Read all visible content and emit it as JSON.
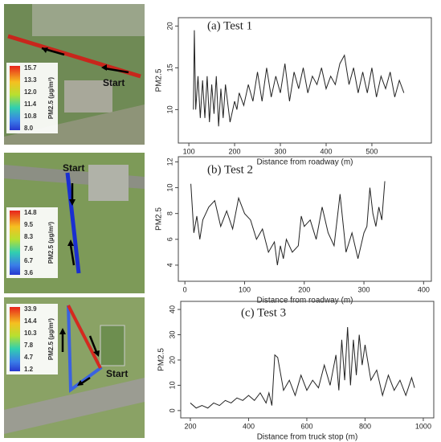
{
  "chart_data": [
    {
      "type": "line",
      "title": "(a) Test 1",
      "y_label": "PM2.5",
      "x_label": "Distance from roadway (m)",
      "color": "#222222",
      "x": [
        110,
        112,
        115,
        120,
        125,
        130,
        135,
        140,
        145,
        150,
        155,
        160,
        165,
        170,
        175,
        180,
        190,
        200,
        205,
        210,
        220,
        230,
        240,
        250,
        260,
        270,
        280,
        290,
        300,
        310,
        320,
        330,
        340,
        350,
        360,
        370,
        380,
        390,
        400,
        410,
        420,
        430,
        440,
        450,
        460,
        470,
        480,
        490,
        500,
        510,
        520,
        530,
        540,
        550,
        560,
        570
      ],
      "values": [
        10,
        19.5,
        10,
        14,
        9,
        13.5,
        9,
        14,
        8.5,
        13,
        9.5,
        14,
        8,
        12.5,
        9,
        13,
        8.5,
        11,
        10,
        12,
        10.5,
        13,
        11,
        14.5,
        11,
        15,
        11.5,
        14,
        12,
        15.5,
        11,
        14.5,
        12.5,
        15,
        12,
        14,
        13,
        15,
        12.5,
        14,
        13,
        15.5,
        16.5,
        13,
        15,
        12,
        14.5,
        12,
        15,
        11.5,
        14,
        12.5,
        14.5,
        11.5,
        13.5,
        12
      ],
      "xlim": [
        77,
        630
      ],
      "ylim": [
        6,
        21
      ],
      "xticks": [
        100,
        200,
        300,
        400,
        500
      ],
      "yticks": [
        10,
        15,
        20
      ]
    },
    {
      "type": "line",
      "title": "(b) Test 2",
      "y_label": "PM2.5",
      "x_label": "Distance from roadway (m)",
      "color": "#222222",
      "x": [
        10,
        15,
        20,
        25,
        30,
        35,
        40,
        50,
        60,
        70,
        80,
        90,
        100,
        110,
        120,
        130,
        140,
        150,
        155,
        160,
        165,
        170,
        180,
        190,
        195,
        200,
        210,
        220,
        230,
        240,
        250,
        260,
        270,
        280,
        290,
        300,
        305,
        310,
        315,
        320,
        325,
        330,
        335
      ],
      "values": [
        10.3,
        6.5,
        7.8,
        6,
        7.5,
        8,
        8.5,
        9,
        7,
        8.2,
        6.8,
        9.2,
        8,
        7.5,
        6,
        6.8,
        5,
        5.8,
        4,
        5.5,
        4.5,
        6,
        5,
        5.5,
        7.8,
        7,
        7.5,
        6,
        8.5,
        6.5,
        5.5,
        9.5,
        5,
        6.5,
        4.5,
        6.5,
        7,
        10,
        8,
        7,
        8.5,
        7.5,
        10.5
      ],
      "xlim": [
        -11,
        413
      ],
      "ylim": [
        2.75,
        12.4
      ],
      "xticks": [
        0,
        100,
        200,
        300,
        400
      ],
      "yticks": [
        4,
        6,
        8,
        10,
        12
      ]
    },
    {
      "type": "line",
      "title": "(c) Test 3",
      "y_label": "PM2.5",
      "x_label": "Distance from truck stop (m)",
      "color": "#222222",
      "x": [
        200,
        220,
        240,
        260,
        280,
        300,
        320,
        340,
        360,
        380,
        400,
        420,
        440,
        460,
        470,
        480,
        490,
        500,
        520,
        540,
        560,
        580,
        600,
        620,
        640,
        660,
        680,
        700,
        710,
        720,
        730,
        740,
        750,
        760,
        770,
        780,
        790,
        800,
        820,
        840,
        860,
        880,
        900,
        920,
        940,
        960,
        970
      ],
      "values": [
        3,
        1,
        2,
        1,
        3,
        2,
        4,
        3,
        5,
        4,
        6,
        4,
        7,
        3,
        7,
        2,
        22,
        21,
        8,
        12,
        6,
        14,
        8,
        12,
        9,
        18,
        10,
        22,
        8,
        28,
        12,
        33,
        10,
        28,
        14,
        30,
        18,
        26,
        12,
        16,
        6,
        14,
        8,
        12,
        6,
        13,
        9
      ],
      "xlim": [
        167,
        1036
      ],
      "ylim": [
        -2.9,
        43.2
      ],
      "xticks": [
        200,
        400,
        600,
        800,
        1000
      ],
      "yticks": [
        0,
        10,
        20,
        30,
        40
      ]
    }
  ],
  "maps": [
    {
      "legend_title": "PM2.5 (µg/m³)",
      "colorbar_labels": [
        "15.7",
        "13.3",
        "12.0",
        "11.4",
        "10.8",
        "8.0"
      ],
      "start": "Start"
    },
    {
      "legend_title": "PM2.5 (µg/m³)",
      "colorbar_labels": [
        "14.8",
        "9.5",
        "8.3",
        "7.6",
        "6.7",
        "3.6"
      ],
      "start": "Start"
    },
    {
      "legend_title": "PM2.5 (µg/m³)",
      "colorbar_labels": [
        "33.9",
        "14.4",
        "10.3",
        "7.8",
        "4.7",
        "1.2"
      ],
      "start": "Start"
    }
  ]
}
